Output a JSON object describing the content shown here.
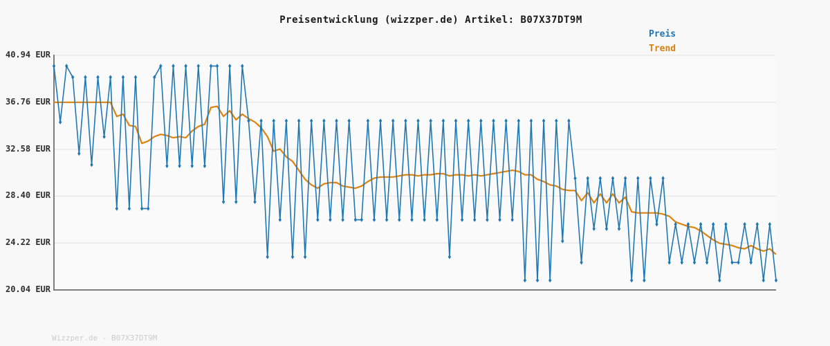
{
  "title": "Preisentwicklung (wizzper.de) Artikel: B07X37DT9M",
  "legend": {
    "preis": {
      "label": "Preis",
      "color": "#1f77b4"
    },
    "trend": {
      "label": "Trend",
      "color": "#d4820e"
    }
  },
  "footer": "Wizzper.de - B07X37DT9M",
  "y_axis": {
    "tick_labels": [
      "40.94 EUR",
      "36.76 EUR",
      "32.58 EUR",
      "28.40 EUR",
      "24.22 EUR",
      "20.04 EUR"
    ],
    "tick_values": [
      40.94,
      36.76,
      32.58,
      28.4,
      24.22,
      20.04
    ]
  },
  "colors": {
    "price_line": "#1f77b4",
    "trend_line": "#dd820f",
    "grid": "#e5e5e5",
    "spine": "#7d7d7d"
  },
  "chart_data": {
    "type": "line",
    "title": "Preisentwicklung (wizzper.de) Artikel: B07X37DT9M",
    "xlabel": "",
    "ylabel": "EUR",
    "ylim": [
      20.04,
      40.94
    ],
    "grid": true,
    "legend_position": "top-right",
    "series": [
      {
        "name": "Preis",
        "marker": "diamond",
        "values": [
          39.99,
          34.99,
          39.99,
          38.99,
          32.19,
          38.99,
          31.19,
          38.99,
          33.69,
          38.99,
          27.29,
          38.99,
          27.29,
          38.99,
          27.29,
          27.29,
          38.99,
          39.99,
          31.09,
          39.99,
          31.09,
          39.99,
          31.09,
          39.99,
          31.09,
          39.99,
          39.99,
          27.89,
          39.99,
          27.89,
          39.99,
          35.11,
          27.89,
          35.11,
          22.99,
          35.11,
          26.29,
          35.11,
          22.99,
          35.11,
          22.99,
          35.11,
          26.29,
          35.11,
          26.29,
          35.11,
          26.29,
          35.11,
          26.29,
          26.29,
          35.11,
          26.29,
          35.11,
          26.29,
          35.11,
          26.29,
          35.11,
          26.29,
          35.11,
          26.29,
          35.11,
          26.29,
          35.11,
          22.99,
          35.11,
          26.29,
          35.11,
          26.29,
          35.11,
          26.29,
          35.11,
          26.29,
          35.11,
          26.29,
          35.11,
          20.9,
          35.11,
          20.9,
          35.11,
          20.9,
          35.11,
          24.39,
          35.11,
          29.99,
          22.49,
          29.99,
          25.49,
          29.99,
          25.49,
          29.99,
          25.49,
          29.99,
          20.9,
          29.99,
          20.9,
          29.99,
          25.89,
          29.99,
          22.49,
          25.89,
          22.49,
          25.89,
          22.49,
          25.89,
          22.49,
          25.89,
          20.9,
          25.89,
          22.49,
          22.49,
          25.89,
          22.49,
          25.89,
          20.9,
          25.89,
          20.9
        ]
      },
      {
        "name": "Trend",
        "marker": "none",
        "values": [
          36.76,
          36.76,
          36.76,
          36.76,
          36.76,
          36.76,
          36.76,
          36.76,
          36.76,
          36.76,
          35.5,
          35.7,
          34.7,
          34.6,
          33.1,
          33.3,
          33.7,
          33.9,
          33.8,
          33.6,
          33.7,
          33.6,
          34.2,
          34.6,
          34.8,
          36.3,
          36.4,
          35.5,
          36.0,
          35.2,
          35.7,
          35.3,
          35.0,
          34.5,
          33.7,
          32.4,
          32.6,
          31.9,
          31.5,
          30.7,
          29.9,
          29.4,
          29.1,
          29.5,
          29.6,
          29.6,
          29.3,
          29.2,
          29.1,
          29.3,
          29.7,
          30.0,
          30.1,
          30.1,
          30.1,
          30.2,
          30.3,
          30.3,
          30.2,
          30.3,
          30.3,
          30.4,
          30.4,
          30.2,
          30.3,
          30.3,
          30.2,
          30.3,
          30.2,
          30.3,
          30.4,
          30.5,
          30.6,
          30.7,
          30.6,
          30.3,
          30.3,
          29.9,
          29.7,
          29.4,
          29.3,
          29.0,
          28.9,
          28.9,
          28.0,
          28.7,
          27.8,
          28.6,
          27.8,
          28.6,
          27.8,
          28.3,
          27.0,
          26.9,
          26.9,
          26.9,
          26.9,
          26.8,
          26.6,
          26.1,
          25.9,
          25.7,
          25.6,
          25.3,
          24.9,
          24.5,
          24.2,
          24.1,
          24.0,
          23.8,
          23.7,
          24.0,
          23.7,
          23.5,
          23.7,
          23.2
        ]
      }
    ]
  }
}
